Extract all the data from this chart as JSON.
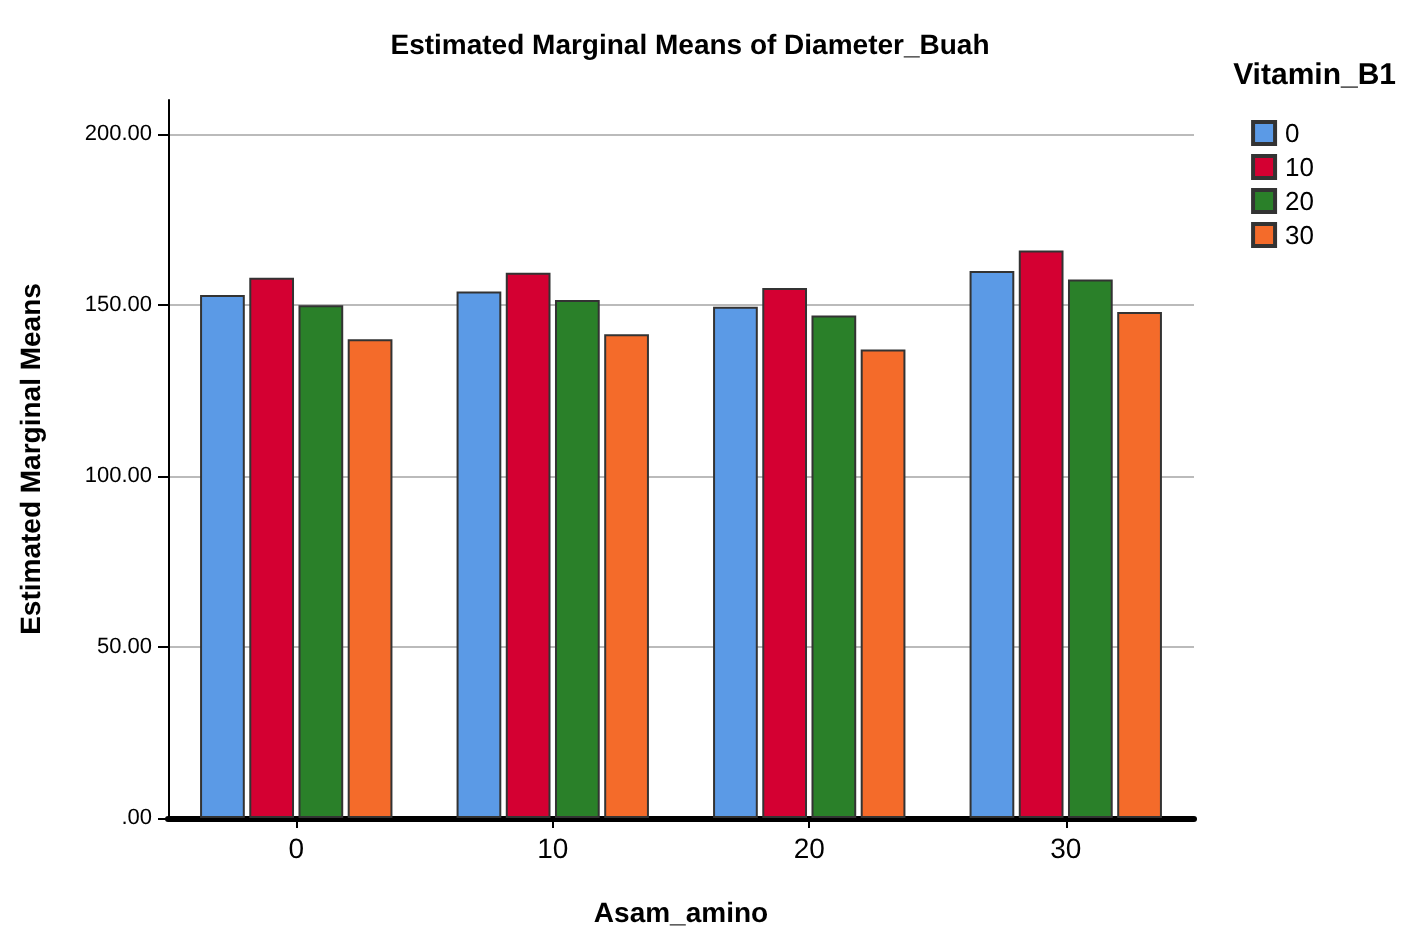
{
  "chart_data": {
    "type": "bar",
    "title": "Estimated Marginal Means of Diameter_Buah",
    "xlabel": "Asam_amino",
    "ylabel": "Estimated Marginal Means",
    "legend_title": "Vitamin_B1",
    "categories": [
      "0",
      "10",
      "20",
      "30"
    ],
    "series": [
      {
        "name": "0",
        "color": "#5b9ae6",
        "values": [
          153,
          154,
          149.5,
          160
        ]
      },
      {
        "name": "10",
        "color": "#d40032",
        "values": [
          158,
          159.5,
          155,
          166
        ]
      },
      {
        "name": "20",
        "color": "#2a8029",
        "values": [
          150,
          151.5,
          147,
          157.5
        ]
      },
      {
        "name": "30",
        "color": "#f46b2a",
        "values": [
          140,
          141.5,
          137,
          148
        ]
      }
    ],
    "ylim": [
      0,
      210
    ],
    "yticks": [
      {
        "value": 0,
        "label": ".00"
      },
      {
        "value": 50,
        "label": "50.00"
      },
      {
        "value": 100,
        "label": "100.00"
      },
      {
        "value": 150,
        "label": "150.00"
      },
      {
        "value": 200,
        "label": "200.00"
      }
    ],
    "grid": "y",
    "legend": "top right"
  }
}
